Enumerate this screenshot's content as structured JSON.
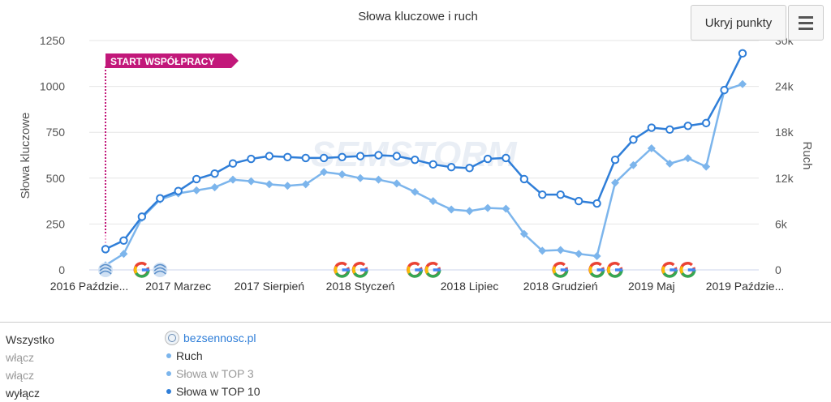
{
  "chart_data": {
    "type": "line",
    "title": "Słowa kluczowe i ruch",
    "ylabel_left": "Słowa kluczowe",
    "ylabel_right": "Ruch",
    "left_axis": {
      "min": 0,
      "max": 1250,
      "ticks": [
        0,
        250,
        500,
        750,
        1000,
        1250
      ],
      "tick_labels": [
        "0",
        "250",
        "500",
        "750",
        "1000",
        "1250"
      ]
    },
    "right_axis": {
      "min": 0,
      "max": 30000,
      "ticks": [
        0,
        6000,
        12000,
        18000,
        24000,
        30000
      ],
      "tick_labels": [
        "0",
        "6k",
        "12k",
        "18k",
        "24k",
        "30k"
      ]
    },
    "x_labels": [
      {
        "index": 0,
        "label": "2016 Październik"
      },
      {
        "index": 4,
        "label": "2017 Marzec"
      },
      {
        "index": 9,
        "label": "2017 Sierpień"
      },
      {
        "index": 14,
        "label": "2018 Styczeń"
      },
      {
        "index": 20,
        "label": "2018 Lipiec"
      },
      {
        "index": 25,
        "label": "2018 Grudzień"
      },
      {
        "index": 30,
        "label": "2019 Maj"
      },
      {
        "index": 35,
        "label": "2019 Październik"
      }
    ],
    "x_label_display": [
      "2016 Paździe...",
      "2017 Marzec",
      "2017 Sierpień",
      "2018 Styczeń",
      "2018 Lipiec",
      "2018 Grudzień",
      "2019 Maj",
      "2019 Paździe..."
    ],
    "point_count": 36,
    "series": [
      {
        "name": "Słowa w TOP 10",
        "axis": "left",
        "color": "#2f7ed8",
        "marker": "circle",
        "values": [
          113,
          160,
          290,
          390,
          430,
          495,
          525,
          580,
          605,
          620,
          615,
          610,
          610,
          615,
          620,
          625,
          620,
          600,
          575,
          560,
          555,
          605,
          610,
          495,
          410,
          410,
          375,
          362,
          600,
          710,
          775,
          765,
          785,
          800,
          980,
          1180
        ]
      },
      {
        "name": "Ruch",
        "axis": "right",
        "color": "#7cb5ec",
        "marker": "diamond",
        "values": [
          600,
          2100,
          6800,
          9200,
          10000,
          10400,
          10800,
          11800,
          11600,
          11200,
          11000,
          11200,
          12800,
          12500,
          12000,
          11800,
          11300,
          10200,
          9000,
          7900,
          7700,
          8100,
          8000,
          4700,
          2500,
          2600,
          2100,
          1800,
          11400,
          13700,
          15900,
          13900,
          14600,
          13500,
          23500,
          24300
        ]
      }
    ],
    "markers": [
      {
        "type": "start",
        "index": 0,
        "label": "START WSPÓŁPRACY",
        "color": "#c2187a"
      }
    ],
    "events": [
      {
        "type": "seo",
        "index": 0
      },
      {
        "type": "google",
        "index": 2
      },
      {
        "type": "seo",
        "index": 3
      },
      {
        "type": "google",
        "index": 13
      },
      {
        "type": "google",
        "index": 14
      },
      {
        "type": "google",
        "index": 17
      },
      {
        "type": "google",
        "index": 18
      },
      {
        "type": "google",
        "index": 25
      },
      {
        "type": "google",
        "index": 27
      },
      {
        "type": "google",
        "index": 28
      },
      {
        "type": "google",
        "index": 31
      },
      {
        "type": "google",
        "index": 32
      }
    ],
    "watermark": "SEMSTORM"
  },
  "toolbar": {
    "hide_points_label": "Ukryj punkty",
    "menu_icon": "hamburger-icon"
  },
  "legend": {
    "all_label": "Wszystko",
    "toggles": [
      "włącz",
      "włącz",
      "wyłącz"
    ],
    "site": "bezsennosc.pl",
    "items": [
      {
        "label": "Ruch",
        "color": "#7cb5ec",
        "active": true
      },
      {
        "label": "Słowa w TOP 3",
        "color": "#7cb5ec",
        "active": false
      },
      {
        "label": "Słowa w TOP 10",
        "color": "#2f7ed8",
        "active": true
      }
    ]
  }
}
